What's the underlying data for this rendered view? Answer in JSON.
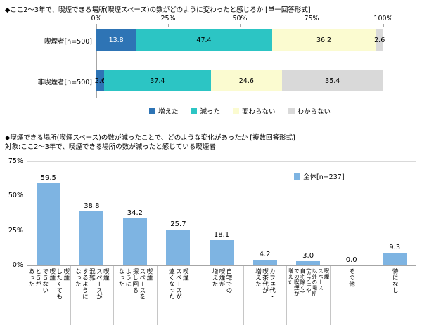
{
  "chart_data": [
    {
      "type": "bar",
      "orientation": "horizontal-stacked",
      "title": "◆ここ2〜3年で、喫煙できる場所(喫煙スペース)の数がどのように変わったと感じるか [単一回答形式]",
      "x_ticks": [
        "0%",
        "25%",
        "50%",
        "75%",
        "100%"
      ],
      "xlim": [
        0,
        100
      ],
      "grid": false,
      "categories": [
        "喫煙者[n=500]",
        "非喫煙者[n=500]"
      ],
      "series": [
        {
          "name": "増えた",
          "color": "#2e74b5",
          "values": [
            13.8,
            2.6
          ]
        },
        {
          "name": "減った",
          "color": "#2cc5c4",
          "values": [
            47.4,
            37.4
          ]
        },
        {
          "name": "変わらない",
          "color": "#fbfbd0",
          "values": [
            36.2,
            24.6
          ]
        },
        {
          "name": "わからない",
          "color": "#d9d9d9",
          "values": [
            2.6,
            35.4
          ]
        }
      ],
      "legend_position": "bottom"
    },
    {
      "type": "bar",
      "orientation": "vertical",
      "title": "◆喫煙できる場所(喫煙スペース)の数が減ったことで、どのような変化があったか [複数回答形式]",
      "subtitle": "対象:ここ2〜3年で、喫煙できる場所の数が減ったと感じている喫煙者",
      "legend": "全体[n=237]",
      "legend_position": "top-right",
      "bar_color": "#7eb4e2",
      "y_ticks": [
        "0%",
        "25%",
        "50%",
        "75%"
      ],
      "ylim": [
        0,
        75
      ],
      "grid": false,
      "categories": [
        "喫煙したくても喫煙できないときがあった",
        "喫煙スペースが混雑するようになった",
        "喫煙スペースを探し回るようになった",
        "喫煙スペースが遠くなった",
        "自宅での喫煙が増えた",
        "カフェ代・喫茶代が増えた",
        "喫煙スペース以外の場所(カフェや自宅除く)での喫煙が増えた",
        "その他",
        "特になし"
      ],
      "category_lines": [
        "喫煙\nしたくても\n喫煙\nできない\nときが\nあった",
        "喫煙\nスペースが\n混雑\nするように\nなった",
        "喫煙\nスペースを\n探し回る\nように\nなった",
        "喫煙\nスペースが\n遠くなった",
        "自宅での\n喫煙が\n増えた",
        "カフェ代・\n喫茶代が\n増えた",
        "喫煙\nスペース\n以外の場所\n(カフェや\n自宅除く)\nでの喫煙が\n増えた",
        "その他",
        "特になし"
      ],
      "values": [
        59.5,
        38.8,
        34.2,
        25.7,
        18.1,
        4.2,
        3.0,
        0.0,
        9.3
      ]
    }
  ]
}
